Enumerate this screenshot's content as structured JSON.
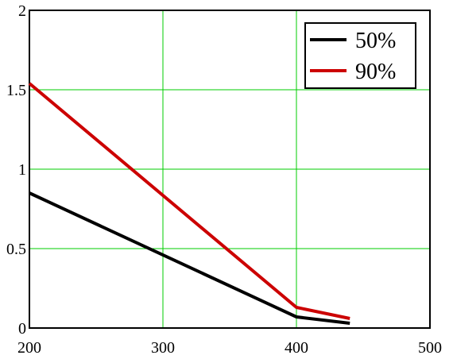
{
  "chart_data": {
    "type": "line",
    "title": "",
    "xlabel": "",
    "ylabel": "",
    "xlim": [
      200,
      500
    ],
    "ylim": [
      0,
      2
    ],
    "grid": true,
    "legend_position": "top-right",
    "x_ticks": [
      200,
      300,
      400,
      500
    ],
    "x_tick_labels": [
      "200",
      "300",
      "400",
      "500"
    ],
    "y_ticks": [
      0,
      0.5,
      1,
      1.5,
      2
    ],
    "y_tick_labels": [
      "0",
      "0.5",
      "1",
      "1.5",
      "2"
    ],
    "series": [
      {
        "name": "50%",
        "color": "#000000",
        "x": [
          200,
          400,
          440
        ],
        "y": [
          0.85,
          0.07,
          0.03
        ]
      },
      {
        "name": "90%",
        "color": "#cc0000",
        "x": [
          200,
          400,
          440
        ],
        "y": [
          1.54,
          0.13,
          0.06
        ]
      }
    ]
  },
  "colors": {
    "grid": "#00cc00",
    "axis": "#000000",
    "background": "#ffffff"
  }
}
